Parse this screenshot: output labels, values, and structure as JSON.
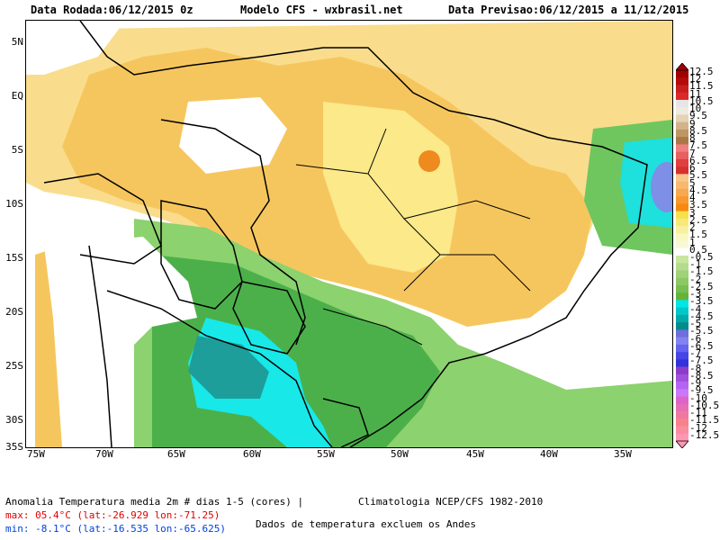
{
  "header": {
    "run_date": "Data Rodada:06/12/2015 0z",
    "model": "Modelo CFS - wxbrasil.net",
    "forecast_date": "Data Previsao:06/12/2015 a 11/12/2015"
  },
  "axes": {
    "lat_ticks": [
      "5N",
      "EQ",
      "5S",
      "10S",
      "15S",
      "20S",
      "25S",
      "30S",
      "35S"
    ],
    "lon_ticks": [
      "75W",
      "70W",
      "65W",
      "60W",
      "55W",
      "50W",
      "45W",
      "40W",
      "35W"
    ]
  },
  "footer": {
    "title": "Anomalia Temperatura media 2m # dias 1-5 (cores) |",
    "climatology": "Climatologia NCEP/CFS 1982-2010",
    "max": "max: 05.4°C (lat:-26.929 lon:-71.25)",
    "min": "min: -8.1°C (lat:-16.535 lon:-65.625)",
    "note": "Dados de temperatura excluem os Andes"
  },
  "colorbar": {
    "labels": [
      "12.5",
      "12",
      "11.5",
      "11",
      "10.5",
      "10",
      "9.5",
      "9",
      "8.5",
      "8",
      "7.5",
      "7",
      "6.5",
      "6",
      "5.5",
      "5",
      "4.5",
      "4",
      "3.5",
      "3",
      "2.5",
      "2",
      "1.5",
      "1",
      "0.5",
      "-0.5",
      "-1",
      "-1.5",
      "-2",
      "-2.5",
      "-3",
      "-3.5",
      "-4",
      "-4.5",
      "-5",
      "-5.5",
      "-6",
      "-6.5",
      "-7",
      "-7.5",
      "-8",
      "-8.5",
      "-9",
      "-9.5",
      "-10",
      "-10.5",
      "-11",
      "-11.5",
      "-12",
      "-12.5"
    ],
    "colors": [
      "#a00000",
      "#b40a0a",
      "#c81e1e",
      "#dc2828",
      "#e6e6e6",
      "#f0ebe1",
      "#e6d2b4",
      "#d2b48c",
      "#be9664",
      "#aa7846",
      "#f08080",
      "#e86060",
      "#e04040",
      "#d83030",
      "#f8c888",
      "#f8b870",
      "#f8a850",
      "#f89830",
      "#f88810",
      "#f8e048",
      "#f8e878",
      "#f8f0a0",
      "#f8f8c0",
      "#f8f8d8",
      "#ffffff",
      "#c8e6a0",
      "#b4dc8c",
      "#a0d278",
      "#8cc864",
      "#78be50",
      "#64b43c",
      "#00e6e6",
      "#00c8c8",
      "#00aaaa",
      "#008c8c",
      "#6e6edc",
      "#8282f0",
      "#6464f0",
      "#4646e6",
      "#3232dc",
      "#8c3cc8",
      "#a050dc",
      "#b464f0",
      "#c878f8",
      "#dc64c8",
      "#e66eb4",
      "#f078a0",
      "#f8828c",
      "#fa8ca0",
      "#ff96b4"
    ]
  },
  "overlays": {
    "icons": [
      "colorbar-up-arrow-icon",
      "colorbar-down-arrow-icon"
    ]
  }
}
